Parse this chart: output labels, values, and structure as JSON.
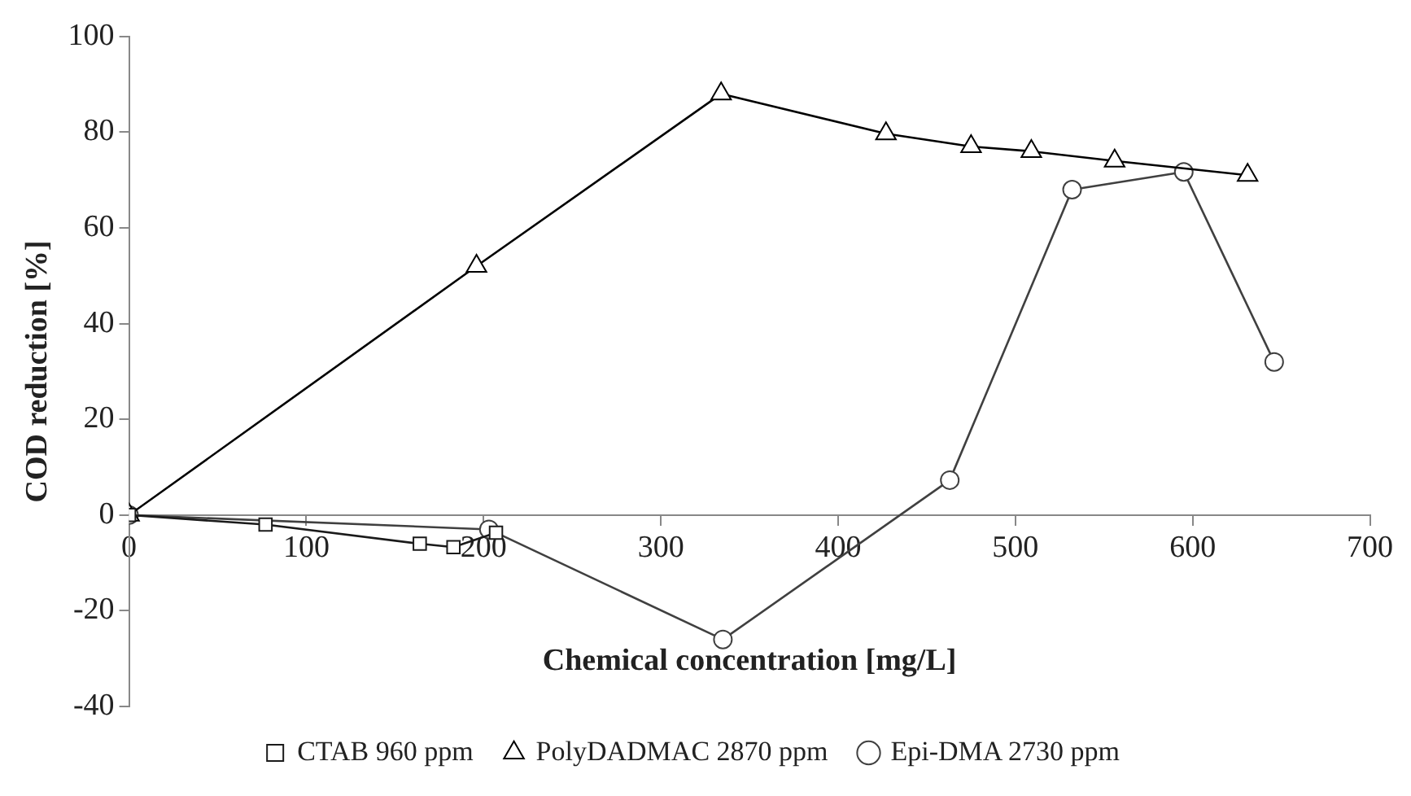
{
  "chart_data": {
    "type": "line",
    "xlabel": "Chemical concentration [mg/L]",
    "ylabel": "COD reduction [%]",
    "xlim": [
      0,
      700
    ],
    "xticks": [
      0,
      100,
      200,
      300,
      400,
      500,
      600,
      700
    ],
    "ylim": [
      -40,
      100
    ],
    "yticks": [
      -40,
      -20,
      0,
      20,
      40,
      60,
      80,
      100
    ],
    "grid": false,
    "legend": "bottom",
    "line_style": "solid",
    "series": [
      {
        "name": "CTAB 960 ppm",
        "color": "#1a1a1a",
        "marker": "square",
        "x": [
          0,
          77,
          164,
          183,
          207
        ],
        "values": [
          0,
          -2,
          -6,
          -6.7,
          -3.7
        ]
      },
      {
        "name": "PolyDADMAC 2870 ppm",
        "color": "#000000",
        "marker": "triangle",
        "x": [
          0,
          196,
          334,
          427,
          475,
          509,
          556,
          631
        ],
        "values": [
          0,
          52,
          88,
          79.7,
          77,
          76,
          74,
          71
        ]
      },
      {
        "name": "Epi-DMA 2730 ppm",
        "color": "#404040",
        "marker": "circle",
        "x": [
          0,
          203,
          335,
          463,
          532,
          595,
          646
        ],
        "values": [
          0,
          -3,
          -26,
          7.3,
          68,
          71.7,
          32
        ]
      }
    ]
  }
}
